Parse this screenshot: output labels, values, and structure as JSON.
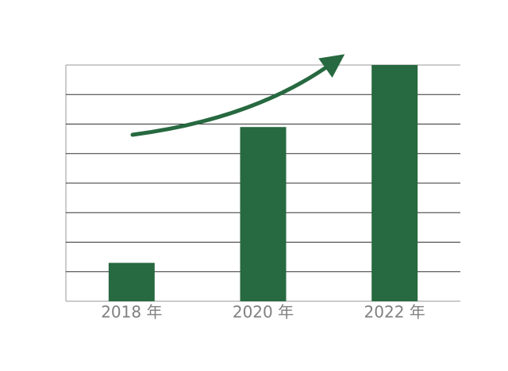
{
  "chart_data": {
    "type": "bar",
    "categories": [
      "2018 年",
      "2020 年",
      "2022 年"
    ],
    "values": [
      1.3,
      5.9,
      8
    ],
    "color": "#276940",
    "ylim": [
      0,
      8
    ],
    "yticks": [
      0,
      1,
      2,
      3,
      4,
      5,
      6,
      7,
      8
    ],
    "grid": true
  }
}
